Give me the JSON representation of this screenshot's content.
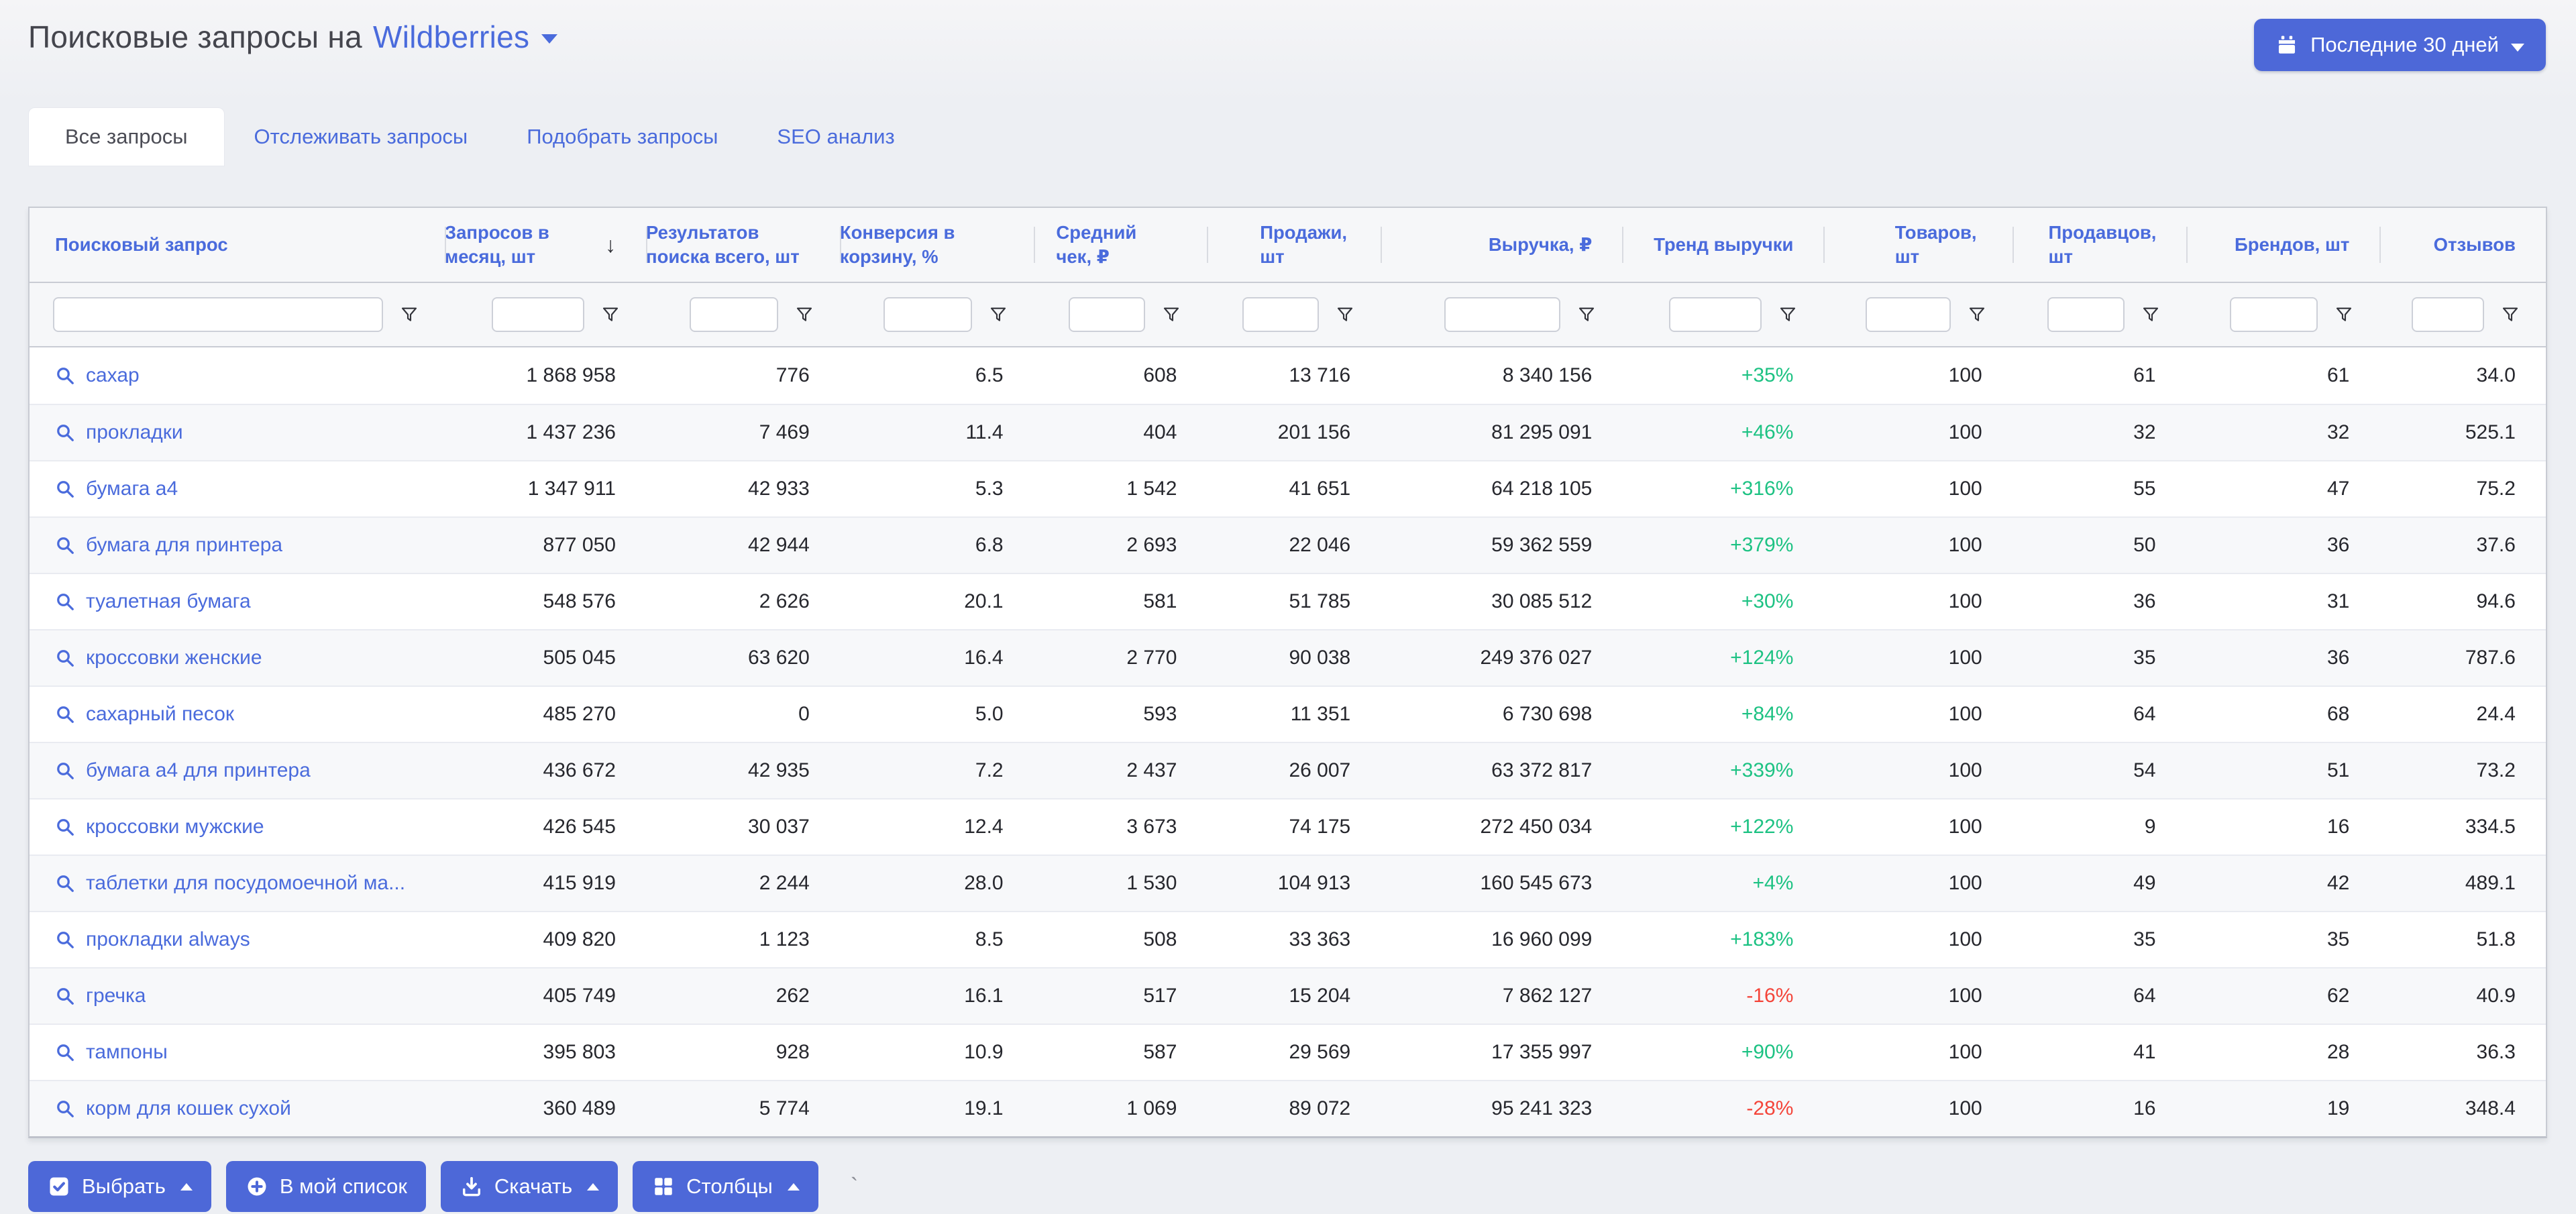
{
  "header": {
    "title_prefix": "Поисковые запросы на",
    "marketplace": "Wildberries",
    "date_range_label": "Последние 30 дней"
  },
  "tabs": [
    {
      "label": "Все запросы",
      "active": true
    },
    {
      "label": "Отслеживать запросы",
      "active": false
    },
    {
      "label": "Подобрать запросы",
      "active": false
    },
    {
      "label": "SEO анализ",
      "active": false
    }
  ],
  "table": {
    "columns": [
      {
        "label": "Поисковый запрос",
        "sorted": false
      },
      {
        "label": "Запросов в месяц, шт",
        "sorted": true
      },
      {
        "label": "Результатов поиска всего, шт",
        "sorted": false
      },
      {
        "label": "Конверсия в корзину, %",
        "sorted": false
      },
      {
        "label": "Средний чек, ₽",
        "sorted": false
      },
      {
        "label": "Продажи, шт",
        "sorted": false
      },
      {
        "label": "Выручка, ₽",
        "sorted": false
      },
      {
        "label": "Тренд выручки",
        "sorted": false
      },
      {
        "label": "Товаров, шт",
        "sorted": false
      },
      {
        "label": "Продавцов, шт",
        "sorted": false
      },
      {
        "label": "Брендов, шт",
        "sorted": false
      },
      {
        "label": "Отзывов",
        "sorted": false
      }
    ],
    "filter_values": [
      "",
      "",
      "",
      "",
      "",
      "",
      "",
      "",
      "",
      "",
      "",
      ""
    ],
    "rows": [
      {
        "query": "сахар",
        "per_month": "1 868 958",
        "results": "776",
        "conversion": "6.5",
        "avg_check": "608",
        "sales": "13 716",
        "revenue": "8 340 156",
        "trend": "+35%",
        "products": "100",
        "sellers": "61",
        "brands": "61",
        "reviews": "34.0"
      },
      {
        "query": "прокладки",
        "per_month": "1 437 236",
        "results": "7 469",
        "conversion": "11.4",
        "avg_check": "404",
        "sales": "201 156",
        "revenue": "81 295 091",
        "trend": "+46%",
        "products": "100",
        "sellers": "32",
        "brands": "32",
        "reviews": "525.1"
      },
      {
        "query": "бумага а4",
        "per_month": "1 347 911",
        "results": "42 933",
        "conversion": "5.3",
        "avg_check": "1 542",
        "sales": "41 651",
        "revenue": "64 218 105",
        "trend": "+316%",
        "products": "100",
        "sellers": "55",
        "brands": "47",
        "reviews": "75.2"
      },
      {
        "query": "бумага для принтера",
        "per_month": "877 050",
        "results": "42 944",
        "conversion": "6.8",
        "avg_check": "2 693",
        "sales": "22 046",
        "revenue": "59 362 559",
        "trend": "+379%",
        "products": "100",
        "sellers": "50",
        "brands": "36",
        "reviews": "37.6"
      },
      {
        "query": "туалетная бумага",
        "per_month": "548 576",
        "results": "2 626",
        "conversion": "20.1",
        "avg_check": "581",
        "sales": "51 785",
        "revenue": "30 085 512",
        "trend": "+30%",
        "products": "100",
        "sellers": "36",
        "brands": "31",
        "reviews": "94.6"
      },
      {
        "query": "кроссовки женские",
        "per_month": "505 045",
        "results": "63 620",
        "conversion": "16.4",
        "avg_check": "2 770",
        "sales": "90 038",
        "revenue": "249 376 027",
        "trend": "+124%",
        "products": "100",
        "sellers": "35",
        "brands": "36",
        "reviews": "787.6"
      },
      {
        "query": "сахарный песок",
        "per_month": "485 270",
        "results": "0",
        "conversion": "5.0",
        "avg_check": "593",
        "sales": "11 351",
        "revenue": "6 730 698",
        "trend": "+84%",
        "products": "100",
        "sellers": "64",
        "brands": "68",
        "reviews": "24.4"
      },
      {
        "query": "бумага а4 для принтера",
        "per_month": "436 672",
        "results": "42 935",
        "conversion": "7.2",
        "avg_check": "2 437",
        "sales": "26 007",
        "revenue": "63 372 817",
        "trend": "+339%",
        "products": "100",
        "sellers": "54",
        "brands": "51",
        "reviews": "73.2"
      },
      {
        "query": "кроссовки мужские",
        "per_month": "426 545",
        "results": "30 037",
        "conversion": "12.4",
        "avg_check": "3 673",
        "sales": "74 175",
        "revenue": "272 450 034",
        "trend": "+122%",
        "products": "100",
        "sellers": "9",
        "brands": "16",
        "reviews": "334.5"
      },
      {
        "query": "таблетки для посудомоечной ма...",
        "per_month": "415 919",
        "results": "2 244",
        "conversion": "28.0",
        "avg_check": "1 530",
        "sales": "104 913",
        "revenue": "160 545 673",
        "trend": "+4%",
        "products": "100",
        "sellers": "49",
        "brands": "42",
        "reviews": "489.1"
      },
      {
        "query": "прокладки always",
        "per_month": "409 820",
        "results": "1 123",
        "conversion": "8.5",
        "avg_check": "508",
        "sales": "33 363",
        "revenue": "16 960 099",
        "trend": "+183%",
        "products": "100",
        "sellers": "35",
        "brands": "35",
        "reviews": "51.8"
      },
      {
        "query": "гречка",
        "per_month": "405 749",
        "results": "262",
        "conversion": "16.1",
        "avg_check": "517",
        "sales": "15 204",
        "revenue": "7 862 127",
        "trend": "-16%",
        "products": "100",
        "sellers": "64",
        "brands": "62",
        "reviews": "40.9"
      },
      {
        "query": "тампоны",
        "per_month": "395 803",
        "results": "928",
        "conversion": "10.9",
        "avg_check": "587",
        "sales": "29 569",
        "revenue": "17 355 997",
        "trend": "+90%",
        "products": "100",
        "sellers": "41",
        "brands": "28",
        "reviews": "36.3"
      },
      {
        "query": "корм для кошек сухой",
        "per_month": "360 489",
        "results": "5 774",
        "conversion": "19.1",
        "avg_check": "1 069",
        "sales": "89 072",
        "revenue": "95 241 323",
        "trend": "-28%",
        "products": "100",
        "sellers": "16",
        "brands": "19",
        "reviews": "348.4"
      }
    ]
  },
  "footer_buttons": [
    {
      "label": "Выбрать",
      "icon": "checkbox-icon",
      "caret": true
    },
    {
      "label": "В мой список",
      "icon": "plus-circle-icon",
      "caret": false
    },
    {
      "label": "Скачать",
      "icon": "download-icon",
      "caret": true
    },
    {
      "label": "Столбцы",
      "icon": "columns-icon",
      "caret": true
    }
  ],
  "colors": {
    "accent_blue": "#4a6bdc",
    "button_blue": "#4d68d8",
    "trend_positive": "#1dc283",
    "trend_negative": "#f4453a"
  }
}
